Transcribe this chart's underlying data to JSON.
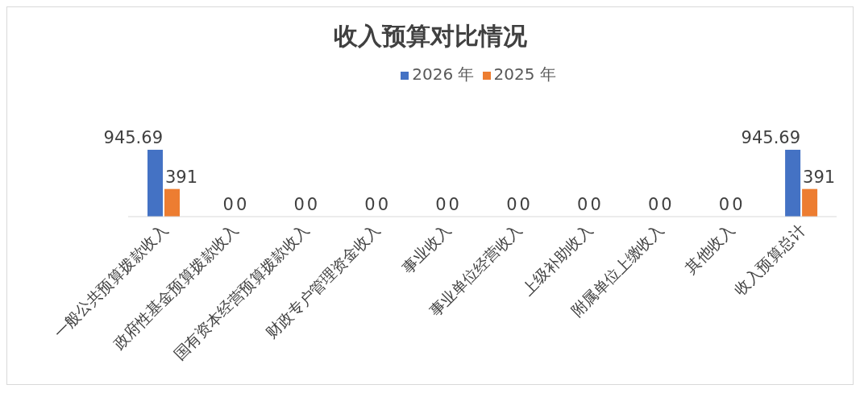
{
  "chart_data": {
    "type": "bar",
    "title": "收入预算对比情况",
    "categories": [
      "一般公共预算拨款收入",
      "政府性基金预算拨款收入",
      "国有资本经营预算拨款收入",
      "财政专户管理资金收入",
      "事业收入",
      "事业单位经营收入",
      "上级补助收入",
      "附属单位上缴收入",
      "其他收入",
      "收入预算总计"
    ],
    "series": [
      {
        "name": "2026 年",
        "color": "#4472c4",
        "values": [
          945.69,
          0,
          0,
          0,
          0,
          0,
          0,
          0,
          0,
          945.69
        ]
      },
      {
        "name": "2025 年",
        "color": "#ed7d31",
        "values": [
          391,
          0,
          0,
          0,
          0,
          0,
          0,
          0,
          0,
          391
        ]
      }
    ],
    "data_labels": true,
    "legend": "top",
    "grid": false
  }
}
